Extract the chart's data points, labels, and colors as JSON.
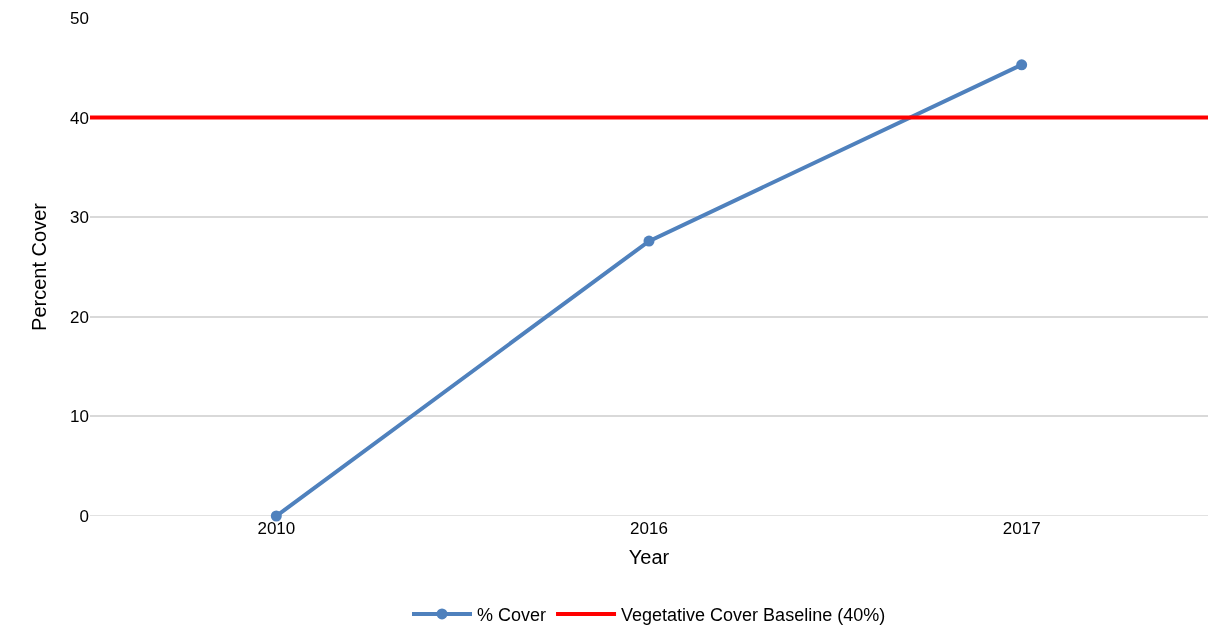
{
  "chart_data": {
    "type": "line",
    "xlabel": "Year",
    "ylabel": "Percent Cover",
    "categories": [
      "2010",
      "2016",
      "2017"
    ],
    "series": [
      {
        "name": "% Cover",
        "color": "#4f81bd",
        "values": [
          0,
          27.6,
          45.3
        ]
      }
    ],
    "ref_lines": [
      {
        "axis": "y",
        "value": 40,
        "label": "Vegetative Cover Baseline (40%)",
        "color": "#ff0000",
        "line_style": "solid"
      }
    ],
    "ylim": [
      0,
      50
    ],
    "yticks": [
      0,
      10,
      20,
      30,
      40,
      50
    ],
    "grid": "y",
    "legend": "bottom",
    "marker": "circle",
    "line_style": "solid"
  }
}
